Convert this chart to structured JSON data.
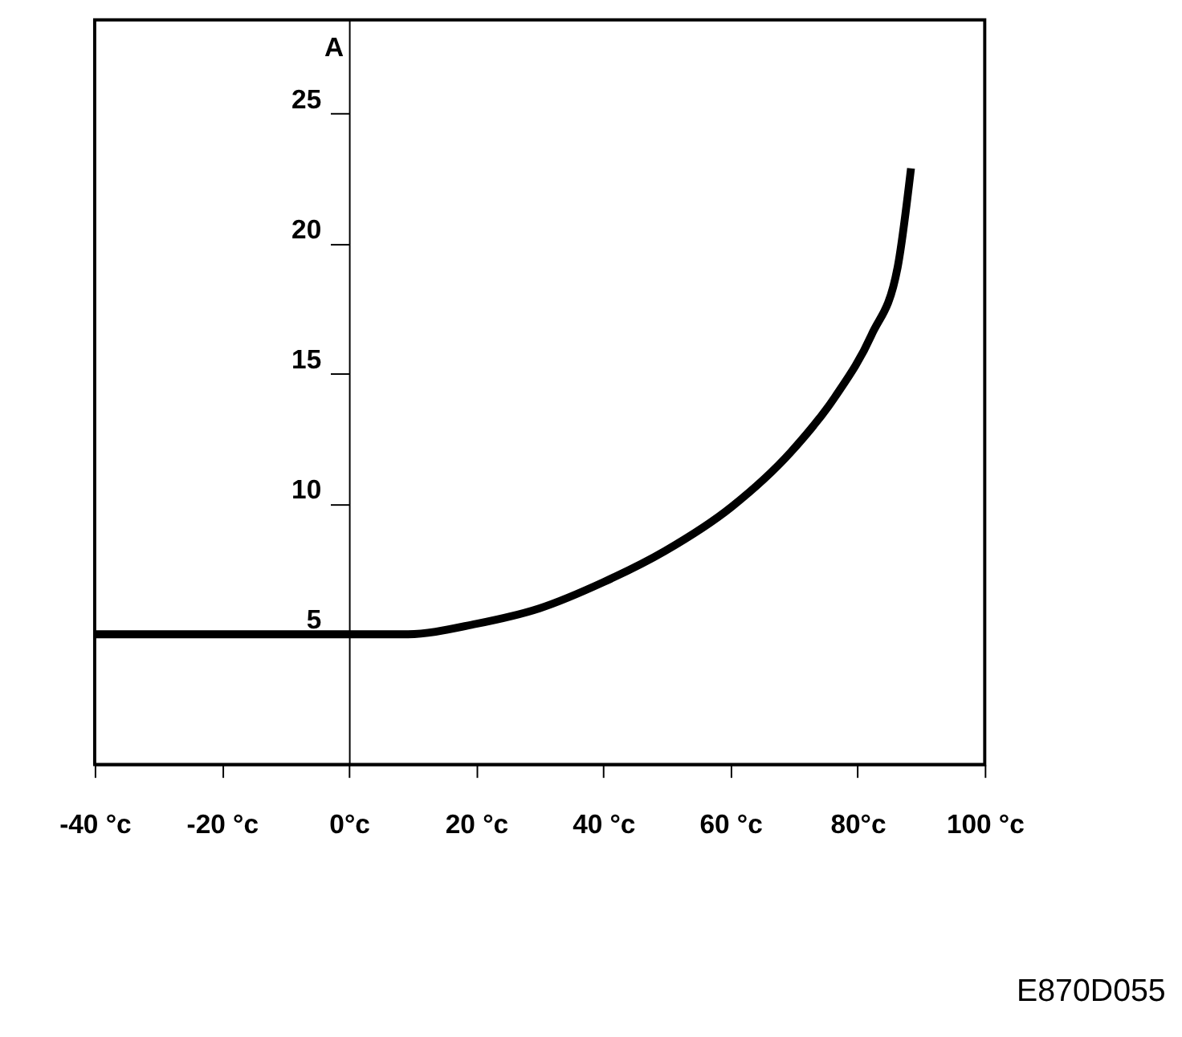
{
  "chart_data": {
    "type": "line",
    "ylabel": "A",
    "annotations": [
      "E870D055"
    ],
    "x": [
      -40,
      0,
      9,
      20,
      30,
      40,
      49.7,
      60.2,
      69.5,
      76.4,
      82.2,
      86.3,
      88.4
    ],
    "series": [
      {
        "color": "#000000",
        "values": [
          5.0,
          5.0,
          5.0,
          5.4,
          6.0,
          7.0,
          8.2,
          9.9,
          12.0,
          14.1,
          16.5,
          19.1,
          22.9
        ]
      }
    ],
    "xlim": [
      -40,
      100
    ],
    "ylim": [
      0,
      28.6
    ],
    "xticks": [
      {
        "value": -40,
        "label": "-40 °c"
      },
      {
        "value": -20,
        "label": "-20 °c"
      },
      {
        "value": 0,
        "label": "0°c"
      },
      {
        "value": 20,
        "label": "20 °c"
      },
      {
        "value": 40,
        "label": "40 °c"
      },
      {
        "value": 60,
        "label": "60 °c"
      },
      {
        "value": 80,
        "label": "80°c"
      },
      {
        "value": 100,
        "label": "100 °c"
      }
    ],
    "yticks": [
      5,
      10,
      15,
      20,
      25
    ],
    "grid": false,
    "marker": "none",
    "line_style": "solid"
  }
}
